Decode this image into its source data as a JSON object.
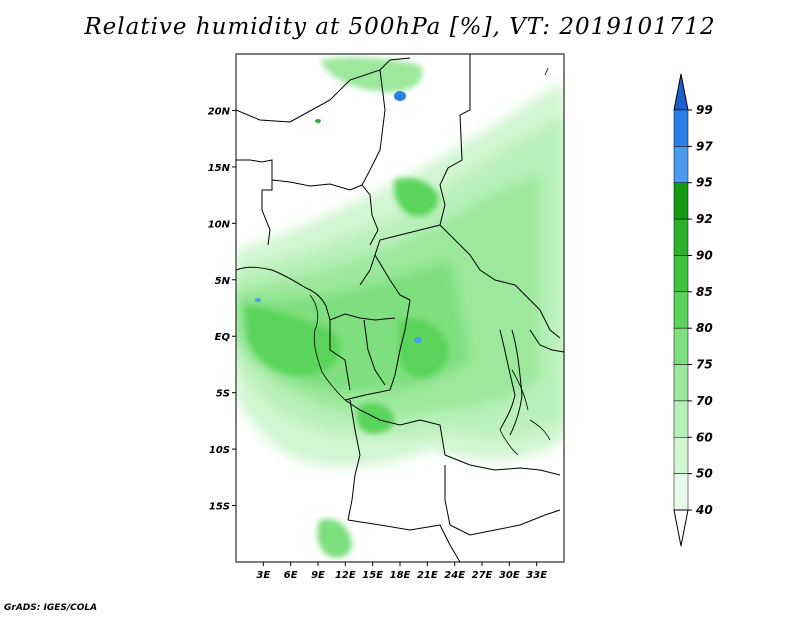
{
  "title": "Relative humidity at 500hPa [%], VT: 2019101712",
  "footer": "GrADS: IGES/COLA",
  "map": {
    "lon_range": [
      0,
      36
    ],
    "lat_range": [
      -20,
      25
    ],
    "lon_ticks": [
      "3E",
      "6E",
      "9E",
      "12E",
      "15E",
      "18E",
      "21E",
      "24E",
      "27E",
      "30E",
      "33E"
    ],
    "lat_ticks": [
      "20N",
      "15N",
      "10N",
      "5N",
      "EQ",
      "5S",
      "10S",
      "15S"
    ]
  },
  "colorbar": {
    "levels": [
      "99",
      "97",
      "95",
      "92",
      "90",
      "85",
      "80",
      "75",
      "70",
      "60",
      "50",
      "40"
    ],
    "colors": [
      "#1e5fd0",
      "#2a7fe6",
      "#4a9af0",
      "#139c13",
      "#2ab02a",
      "#3fc43f",
      "#5ad45a",
      "#7ddf7d",
      "#9ce89c",
      "#b9f0b9",
      "#d2f6d2",
      "#e8fbe8"
    ]
  }
}
